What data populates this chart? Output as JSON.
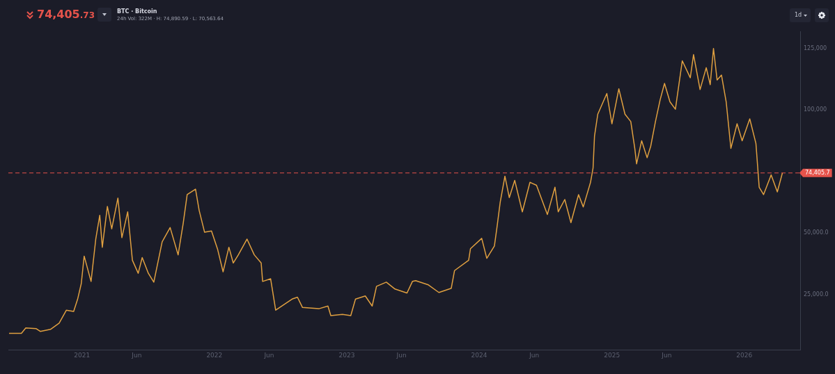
{
  "chart_data": {
    "type": "line",
    "title": "BTC · Bitcoin",
    "annotations": [
      "74,405.73",
      "24h Vol: 322M · H: 74,890.59 · L: 70,563.64",
      "1d"
    ],
    "x": [
      "2020-06-14",
      "2020-07-18",
      "2020-07-30",
      "2020-08-28",
      "2020-09-08",
      "2020-10-06",
      "2020-10-30",
      "2020-11-19",
      "2020-12-09",
      "2020-12-20",
      "2020-12-30",
      "2021-01-07",
      "2021-01-26",
      "2021-02-08",
      "2021-02-19",
      "2021-02-26",
      "2021-03-12",
      "2021-03-24",
      "2021-04-10",
      "2021-04-21",
      "2021-05-07",
      "2021-05-20",
      "2021-06-05",
      "2021-06-16",
      "2021-07-03",
      "2021-07-18",
      "2021-08-10",
      "2021-09-01",
      "2021-09-23",
      "2021-10-07",
      "2021-10-18",
      "2021-11-10",
      "2021-11-20",
      "2021-12-05",
      "2021-12-24",
      "2022-01-10",
      "2022-01-25",
      "2022-02-10",
      "2022-02-22",
      "2022-03-08",
      "2022-04-01",
      "2022-04-21",
      "2022-05-10",
      "2022-05-14",
      "2022-06-05",
      "2022-06-19",
      "2022-08-03",
      "2022-08-18",
      "2022-09-01",
      "2022-10-16",
      "2022-11-10",
      "2022-11-18",
      "2022-12-20",
      "2023-01-12",
      "2023-01-25",
      "2023-02-21",
      "2023-03-12",
      "2023-03-24",
      "2023-04-20",
      "2023-05-14",
      "2023-06-16",
      "2023-07-01",
      "2023-07-10",
      "2023-08-14",
      "2023-09-12",
      "2023-10-16",
      "2023-10-25",
      "2023-12-03",
      "2023-12-08",
      "2024-01-08",
      "2024-01-22",
      "2024-02-12",
      "2024-02-19",
      "2024-02-28",
      "2024-03-12",
      "2024-03-24",
      "2024-04-08",
      "2024-04-29",
      "2024-05-20",
      "2024-06-07",
      "2024-07-07",
      "2024-07-28",
      "2024-08-06",
      "2024-08-24",
      "2024-09-10",
      "2024-10-01",
      "2024-10-14",
      "2024-11-03",
      "2024-11-10",
      "2024-11-14",
      "2024-11-23",
      "2024-12-18",
      "2025-01-01",
      "2025-01-20",
      "2025-02-06",
      "2025-02-22",
      "2025-03-05",
      "2025-03-10",
      "2025-03-24",
      "2025-04-08",
      "2025-04-18",
      "2025-05-01",
      "2025-05-14",
      "2025-05-26",
      "2025-06-10",
      "2025-06-25",
      "2025-07-14",
      "2025-08-05",
      "2025-08-14",
      "2025-09-01",
      "2025-09-18",
      "2025-09-29",
      "2025-10-08",
      "2025-10-18",
      "2025-10-30",
      "2025-11-12",
      "2025-11-25",
      "2025-12-12",
      "2025-12-26",
      "2026-01-16",
      "2026-02-02",
      "2026-02-11",
      "2026-02-23",
      "2026-03-16",
      "2026-04-02",
      "2026-04-16"
    ],
    "series": [
      {
        "color": "#e0a040",
        "values": [
          9200,
          9200,
          11400,
          11100,
          10000,
          10800,
          13300,
          18600,
          18100,
          23100,
          29400,
          40600,
          30300,
          47500,
          57200,
          44200,
          60800,
          51700,
          64200,
          48100,
          58600,
          38900,
          33600,
          40000,
          33600,
          30000,
          46400,
          52200,
          41100,
          53900,
          65600,
          67800,
          59200,
          50300,
          50800,
          43300,
          34200,
          44200,
          37800,
          41100,
          47500,
          41100,
          37800,
          30300,
          31400,
          18600,
          23100,
          23900,
          19700,
          19200,
          20300,
          16400,
          16900,
          16400,
          23100,
          24400,
          20300,
          28300,
          30000,
          27200,
          25600,
          30300,
          30600,
          28900,
          25800,
          27500,
          34700,
          38900,
          43600,
          47800,
          39700,
          44700,
          52200,
          62500,
          73100,
          64400,
          71400,
          58600,
          70600,
          69400,
          57500,
          68600,
          58600,
          63600,
          54200,
          65600,
          60600,
          70600,
          76400,
          89400,
          98300,
          106700,
          94400,
          108600,
          98300,
          95300,
          84400,
          78100,
          87500,
          80600,
          85300,
          95300,
          104200,
          110800,
          103300,
          100300,
          120000,
          113100,
          122500,
          108300,
          117200,
          110300,
          125000,
          112200,
          114200,
          103300,
          84400,
          94400,
          87500,
          96400,
          86400,
          68600,
          65600,
          73600,
          66700,
          74400
        ]
      }
    ],
    "xlim": [
      "2020-06-12",
      "2026-06-04"
    ],
    "xticks": [
      {
        "value": "2021-01-01",
        "label": "2021"
      },
      {
        "value": "2021-06-01",
        "label": "Jun"
      },
      {
        "value": "2022-01-01",
        "label": "2022"
      },
      {
        "value": "2022-06-01",
        "label": "Jun"
      },
      {
        "value": "2023-01-01",
        "label": "2023"
      },
      {
        "value": "2023-06-01",
        "label": "Jun"
      },
      {
        "value": "2024-01-01",
        "label": "2024"
      },
      {
        "value": "2024-06-01",
        "label": "Jun"
      },
      {
        "value": "2025-01-01",
        "label": "2025"
      },
      {
        "value": "2025-06-01",
        "label": "Jun"
      },
      {
        "value": "2026-01-01",
        "label": "2026"
      }
    ],
    "ylim": [
      2500,
      132000
    ],
    "yticks": [
      {
        "value": 25000,
        "label": "25,000.0"
      },
      {
        "value": 50000,
        "label": "50,000.0"
      },
      {
        "value": 100000,
        "label": "100,000"
      },
      {
        "value": 125000,
        "label": "125,000"
      }
    ],
    "ref_lines": [
      {
        "axis": "y",
        "value": 74405.7,
        "label": "74,405.7",
        "color": "#e5534b",
        "line_style": "dashed"
      }
    ],
    "grid": false,
    "legend": false,
    "marker": "none",
    "line_style": "solid"
  }
}
